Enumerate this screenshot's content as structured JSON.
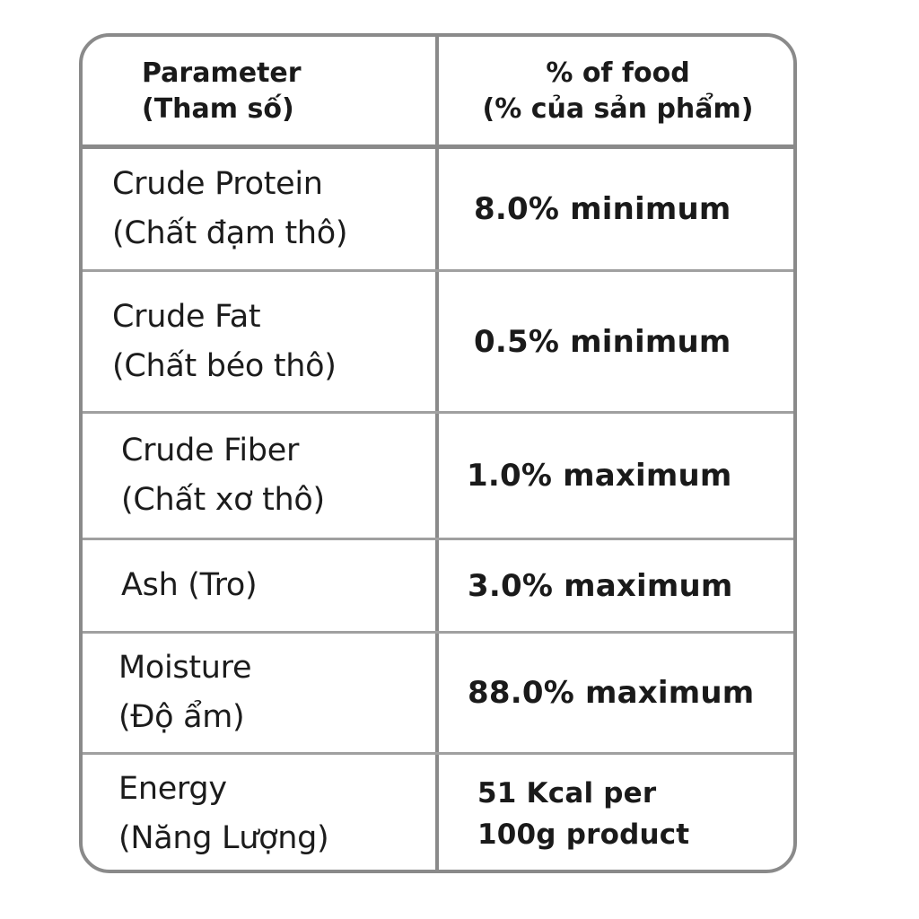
{
  "header": {
    "parameter_label": "Parameter",
    "parameter_label_vi": "(Tham số)",
    "value_label": "% of food",
    "value_label_vi": "(% của sản phẩm)"
  },
  "rows": [
    {
      "param": "Crude Protein",
      "param_vi": "(Chất đạm thô)",
      "value": "8.0% minimum"
    },
    {
      "param": "Crude Fat",
      "param_vi": "(Chất béo thô)",
      "value": "0.5% minimum"
    },
    {
      "param": "Crude Fiber",
      "param_vi": "(Chất xơ thô)",
      "value": "1.0% maximum"
    },
    {
      "param": "Ash (Tro)",
      "value": "3.0% maximum"
    },
    {
      "param": "Moisture",
      "param_vi": "(Độ ẩm)",
      "value": "88.0% maximum"
    },
    {
      "param": "Energy",
      "param_vi": "(Năng Lượng)",
      "value_line1": "51 Kcal per",
      "value_line2": "100g product"
    }
  ],
  "colors": {
    "border": "#8a8a8a",
    "text": "#1a1a1a",
    "background": "#ffffff"
  }
}
